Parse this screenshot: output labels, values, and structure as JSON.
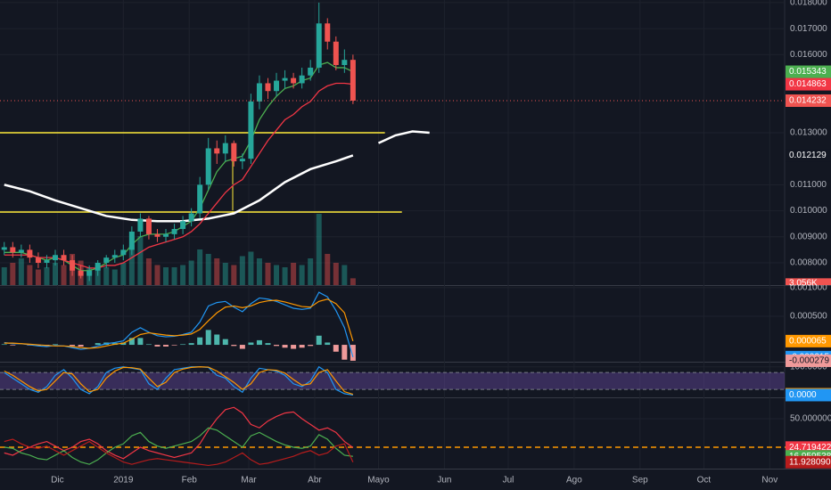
{
  "chart_data": [
    {
      "type": "candlestick",
      "dates": [
        "2018-11-06",
        "2018-11-10",
        "2018-11-14",
        "2018-11-18",
        "2018-11-22",
        "2018-11-26",
        "2018-11-30",
        "2018-12-04",
        "2018-12-08",
        "2018-12-12",
        "2018-12-16",
        "2018-12-20",
        "2018-12-24",
        "2018-12-28",
        "2019-01-01",
        "2019-01-05",
        "2019-01-09",
        "2019-01-13",
        "2019-01-17",
        "2019-01-21",
        "2019-01-25",
        "2019-01-29",
        "2019-02-02",
        "2019-02-06",
        "2019-02-10",
        "2019-02-14",
        "2019-02-18",
        "2019-02-22",
        "2019-02-26",
        "2019-03-02",
        "2019-03-06",
        "2019-03-10",
        "2019-03-14",
        "2019-03-18",
        "2019-03-22",
        "2019-03-26",
        "2019-03-30",
        "2019-04-03",
        "2019-04-07",
        "2019-04-11",
        "2019-04-15",
        "2019-04-19"
      ],
      "open": [
        0.0085,
        0.0086,
        0.0084,
        0.0085,
        0.0082,
        0.008,
        0.0081,
        0.0083,
        0.0081,
        0.0077,
        0.0075,
        0.0077,
        0.008,
        0.0082,
        0.0083,
        0.0085,
        0.0092,
        0.0097,
        0.0091,
        0.009,
        0.0091,
        0.0093,
        0.0096,
        0.0099,
        0.011,
        0.0124,
        0.0122,
        0.0126,
        0.0119,
        0.012,
        0.0142,
        0.0149,
        0.0146,
        0.015,
        0.0151,
        0.0149,
        0.0152,
        0.0155,
        0.0172,
        0.0165,
        0.0156,
        0.0158
      ],
      "high": [
        0.0088,
        0.0088,
        0.0087,
        0.0087,
        0.0084,
        0.0083,
        0.0085,
        0.0085,
        0.0083,
        0.0079,
        0.0079,
        0.0081,
        0.0083,
        0.0085,
        0.0087,
        0.0094,
        0.0099,
        0.0098,
        0.0093,
        0.0093,
        0.0095,
        0.0098,
        0.0101,
        0.0113,
        0.0128,
        0.0127,
        0.0129,
        0.0127,
        0.0122,
        0.0145,
        0.0152,
        0.0151,
        0.0153,
        0.0154,
        0.0153,
        0.0155,
        0.0158,
        0.018,
        0.0174,
        0.0167,
        0.0162,
        0.016
      ],
      "low": [
        0.0083,
        0.0082,
        0.0082,
        0.008,
        0.0078,
        0.0078,
        0.0079,
        0.0079,
        0.0075,
        0.0074,
        0.0073,
        0.0075,
        0.0078,
        0.008,
        0.0081,
        0.0083,
        0.009,
        0.0089,
        0.0088,
        0.0088,
        0.0089,
        0.0091,
        0.0094,
        0.0097,
        0.0108,
        0.0118,
        0.0119,
        0.0117,
        0.0116,
        0.0118,
        0.0139,
        0.0143,
        0.0144,
        0.0147,
        0.0147,
        0.0147,
        0.015,
        0.0153,
        0.0162,
        0.0154,
        0.0153,
        0.0141
      ],
      "close": [
        0.0086,
        0.0084,
        0.0085,
        0.0082,
        0.008,
        0.0081,
        0.0083,
        0.0081,
        0.0077,
        0.0075,
        0.0077,
        0.008,
        0.0082,
        0.0083,
        0.0085,
        0.0092,
        0.0097,
        0.0091,
        0.009,
        0.0091,
        0.0093,
        0.0096,
        0.0099,
        0.011,
        0.0124,
        0.0122,
        0.0126,
        0.0119,
        0.012,
        0.0142,
        0.0149,
        0.0146,
        0.015,
        0.0151,
        0.0149,
        0.0152,
        0.0155,
        0.0172,
        0.0165,
        0.0156,
        0.0158,
        0.014232
      ],
      "up_color": "#26a69a",
      "down_color": "#ef5350",
      "volume": {
        "values": [
          8,
          10,
          12,
          9,
          7,
          8,
          10,
          9,
          14,
          11,
          8,
          9,
          8,
          7,
          10,
          18,
          22,
          12,
          9,
          8,
          8,
          9,
          11,
          16,
          14,
          12,
          10,
          9,
          13,
          15,
          12,
          10,
          9,
          8,
          10,
          9,
          12,
          32,
          14,
          10,
          9,
          3.056
        ],
        "value_labels": [
          null,
          null,
          null,
          null,
          null,
          null,
          null,
          null,
          null,
          null,
          null,
          null,
          null,
          null,
          null,
          null,
          null,
          null,
          null,
          null,
          null,
          null,
          null,
          null,
          null,
          null,
          null,
          null,
          null,
          null,
          null,
          null,
          null,
          null,
          null,
          null,
          null,
          null,
          null,
          null,
          null,
          "3.056K"
        ],
        "ylim": [
          0,
          40
        ]
      },
      "lines": [
        {
          "color": "#4caf50",
          "values": [
            0.0084,
            0.0084,
            0.0084,
            0.0083,
            0.0082,
            0.0081,
            0.0082,
            0.0081,
            0.0079,
            0.0077,
            0.0077,
            0.0078,
            0.008,
            0.0082,
            0.0083,
            0.0087,
            0.009,
            0.0091,
            0.0091,
            0.0091,
            0.0092,
            0.0094,
            0.0096,
            0.0101,
            0.0108,
            0.0115,
            0.0119,
            0.012,
            0.0121,
            0.0127,
            0.0135,
            0.014,
            0.0144,
            0.0147,
            0.0148,
            0.015,
            0.0151,
            0.0156,
            0.0157,
            0.0155,
            0.0155,
            0.015343
          ]
        },
        {
          "color": "#f23645",
          "values": [
            0.0083,
            0.0083,
            0.0083,
            0.0083,
            0.0082,
            0.0082,
            0.0082,
            0.0081,
            0.008,
            0.0079,
            0.0078,
            0.0078,
            0.0079,
            0.0079,
            0.008,
            0.0082,
            0.0084,
            0.0086,
            0.0087,
            0.0088,
            0.0089,
            0.009,
            0.0092,
            0.0095,
            0.0099,
            0.0103,
            0.0107,
            0.011,
            0.0112,
            0.0117,
            0.0122,
            0.0127,
            0.0131,
            0.0135,
            0.0137,
            0.014,
            0.0142,
            0.0146,
            0.0148,
            0.0149,
            0.0149,
            0.014863
          ]
        }
      ],
      "long_ma": {
        "color": "#ffffff",
        "x": [
          "2018-11-06",
          "2018-11-18",
          "2018-11-30",
          "2018-12-12",
          "2018-12-24",
          "2019-01-05",
          "2019-01-17",
          "2019-01-29",
          "2019-02-10",
          "2019-02-22",
          "2019-03-06",
          "2019-03-18",
          "2019-03-30",
          "2019-04-11",
          "2019-04-19",
          "2019-04-25",
          "2019-05-01",
          "2019-05-09",
          "2019-05-17",
          "2019-05-25"
        ],
        "values": [
          0.011,
          0.01075,
          0.0104,
          0.0101,
          0.0098,
          0.00965,
          0.0096,
          0.0096,
          0.0097,
          0.0099,
          0.0104,
          0.0111,
          0.0116,
          0.0119,
          0.012129,
          null,
          0.0126,
          0.0129,
          0.01305,
          0.013
        ]
      },
      "hlines": [
        {
          "value": 0.013,
          "end": "2019-05-04",
          "color": "#ffeb3b"
        },
        {
          "value": 0.00995,
          "end": "2019-05-12",
          "color": "#ffeb3b"
        }
      ],
      "ylim": [
        0.007144,
        0.0181
      ],
      "yticks": [
        {
          "value": 0.018,
          "label": "0.018000"
        },
        {
          "value": 0.017,
          "label": "0.017000"
        },
        {
          "value": 0.016,
          "label": "0.016000"
        },
        {
          "value": 0.013,
          "label": "0.013000"
        },
        {
          "value": 0.011,
          "label": "0.011000"
        },
        {
          "value": 0.01,
          "label": "0.010000"
        },
        {
          "value": 0.009,
          "label": "0.009000"
        },
        {
          "value": 0.008,
          "label": "0.008000"
        }
      ],
      "xlim": [
        "2018-11-04",
        "2019-11-08"
      ],
      "xticks": [
        {
          "value": "2018-12-01",
          "label": "Dic"
        },
        {
          "value": "2019-01-01",
          "label": "2019"
        },
        {
          "value": "2019-02-01",
          "label": "Feb"
        },
        {
          "value": "2019-03-01",
          "label": "Mar"
        },
        {
          "value": "2019-04-01",
          "label": "Abr"
        },
        {
          "value": "2019-05-01",
          "label": "Mayo"
        },
        {
          "value": "2019-06-01",
          "label": "Jun"
        },
        {
          "value": "2019-07-01",
          "label": "Jul"
        },
        {
          "value": "2019-08-01",
          "label": "Ago"
        },
        {
          "value": "2019-09-01",
          "label": "Sep"
        },
        {
          "value": "2019-10-01",
          "label": "Oct"
        },
        {
          "value": "2019-11-01",
          "label": "Nov"
        }
      ]
    },
    {
      "type": "macd",
      "hist": [
        1e-05,
        -1e-05,
        0,
        -1e-05,
        -2e-05,
        -2e-05,
        1e-05,
        0,
        -2e-05,
        -3e-05,
        0,
        3e-05,
        4e-05,
        3e-05,
        4e-05,
        0.00012,
        0.00012,
        1e-05,
        -3e-05,
        -3e-05,
        -1e-05,
        1e-05,
        3e-05,
        0.00013,
        0.00026,
        0.00018,
        0.0001,
        -2e-05,
        -7e-05,
        4e-05,
        8e-05,
        3e-05,
        -2e-05,
        -5e-05,
        -7e-05,
        -5e-05,
        -2e-05,
        0.00016,
        4e-05,
        -0.00012,
        -0.00026,
        -0.000279
      ],
      "series": [
        {
          "color": "#2196f3",
          "values": [
            4e-05,
            2e-05,
            2e-05,
            0,
            -2e-05,
            -3e-05,
            -1e-05,
            -2e-05,
            -5e-05,
            -8e-05,
            -6e-05,
            -2e-05,
            2e-05,
            4e-05,
            7e-05,
            0.00022,
            0.0003,
            0.00022,
            0.00016,
            0.00014,
            0.00015,
            0.00018,
            0.00022,
            0.0004,
            0.00068,
            0.00074,
            0.00076,
            0.00066,
            0.00058,
            0.00072,
            0.00082,
            0.0008,
            0.00076,
            0.0007,
            0.00064,
            0.00062,
            0.00064,
            0.00092,
            0.00084,
            0.0006,
            0.0003,
            -0.000215
          ]
        },
        {
          "color": "#ff9800",
          "values": [
            3e-05,
            3e-05,
            2e-05,
            1e-05,
            0,
            -1e-05,
            -2e-05,
            -2e-05,
            -3e-05,
            -5e-05,
            -6e-05,
            -5e-05,
            -2e-05,
            1e-05,
            3e-05,
            0.0001,
            0.00018,
            0.00021,
            0.00019,
            0.00017,
            0.00016,
            0.00017,
            0.00019,
            0.00027,
            0.00042,
            0.00056,
            0.00066,
            0.00068,
            0.00065,
            0.00068,
            0.00074,
            0.00077,
            0.00078,
            0.00075,
            0.00071,
            0.00067,
            0.00066,
            0.00076,
            0.0008,
            0.00072,
            0.00056,
            6.5e-05
          ]
        }
      ],
      "ylim": [
        -0.00028,
        0.00103
      ],
      "yticks": [
        {
          "value": 0.001,
          "label": "0.001000"
        },
        {
          "value": 0.0005,
          "label": "0.000500"
        }
      ]
    },
    {
      "type": "stoch",
      "band": [
        20,
        80
      ],
      "series": [
        {
          "color": "#2196f3",
          "values": [
            80,
            60,
            40,
            20,
            10,
            30,
            70,
            90,
            60,
            20,
            5,
            30,
            80,
            95,
            100,
            95,
            90,
            40,
            20,
            60,
            90,
            95,
            100,
            100,
            98,
            70,
            60,
            30,
            10,
            60,
            95,
            90,
            85,
            70,
            40,
            30,
            50,
            100,
            80,
            20,
            5,
            0
          ],
          "value_labels": [
            null,
            null,
            null,
            null,
            null,
            null,
            null,
            null,
            null,
            null,
            null,
            null,
            null,
            null,
            null,
            null,
            null,
            null,
            null,
            null,
            null,
            null,
            null,
            null,
            null,
            null,
            null,
            null,
            null,
            null,
            null,
            null,
            null,
            null,
            null,
            null,
            null,
            null,
            null,
            null,
            null,
            "0.0000"
          ]
        },
        {
          "color": "#ff9800",
          "values": [
            85,
            70,
            50,
            30,
            15,
            20,
            50,
            80,
            75,
            40,
            12,
            20,
            60,
            85,
            98,
            97,
            92,
            60,
            30,
            45,
            80,
            92,
            98,
            100,
            99,
            85,
            65,
            45,
            20,
            40,
            80,
            90,
            88,
            78,
            55,
            35,
            40,
            80,
            90,
            50,
            12,
            2.9805
          ]
        }
      ],
      "ylim": [
        -8,
        115
      ],
      "yticks": [
        {
          "value": 100,
          "label": "100.0000"
        }
      ]
    },
    {
      "type": "dmi",
      "hline": 25,
      "series": [
        {
          "color": "#f23645",
          "values": [
            20,
            18,
            22,
            25,
            28,
            30,
            26,
            22,
            25,
            30,
            32,
            28,
            22,
            18,
            15,
            20,
            25,
            22,
            20,
            18,
            16,
            18,
            20,
            28,
            40,
            50,
            58,
            60,
            55,
            45,
            42,
            48,
            52,
            55,
            56,
            50,
            45,
            40,
            42,
            38,
            30,
            24.719422
          ]
        },
        {
          "color": "#4caf50",
          "values": [
            25,
            24,
            20,
            18,
            15,
            14,
            18,
            22,
            16,
            12,
            10,
            14,
            20,
            25,
            28,
            35,
            38,
            30,
            26,
            24,
            26,
            28,
            30,
            35,
            42,
            40,
            35,
            30,
            25,
            35,
            38,
            34,
            30,
            27,
            25,
            24,
            26,
            36,
            32,
            24,
            18,
            16.959538
          ]
        },
        {
          "color": "#b71c1c",
          "values": [
            30,
            32,
            28,
            25,
            24,
            26,
            22,
            18,
            22,
            26,
            30,
            25,
            20,
            16,
            12,
            10,
            12,
            14,
            15,
            14,
            13,
            12,
            11,
            10,
            9,
            10,
            12,
            16,
            20,
            14,
            10,
            11,
            13,
            15,
            17,
            20,
            22,
            18,
            20,
            26,
            28,
            11.92809
          ],
          "value_labels": [
            null,
            null,
            null,
            null,
            null,
            null,
            null,
            null,
            null,
            null,
            null,
            null,
            null,
            null,
            null,
            null,
            null,
            null,
            null,
            null,
            null,
            null,
            null,
            null,
            null,
            null,
            null,
            null,
            null,
            null,
            null,
            null,
            null,
            null,
            null,
            null,
            null,
            null,
            null,
            null,
            null,
            "11.928090"
          ]
        }
      ],
      "ylim": [
        7,
        68
      ],
      "yticks": [
        {
          "value": 50,
          "label": "50.000000"
        }
      ]
    }
  ]
}
